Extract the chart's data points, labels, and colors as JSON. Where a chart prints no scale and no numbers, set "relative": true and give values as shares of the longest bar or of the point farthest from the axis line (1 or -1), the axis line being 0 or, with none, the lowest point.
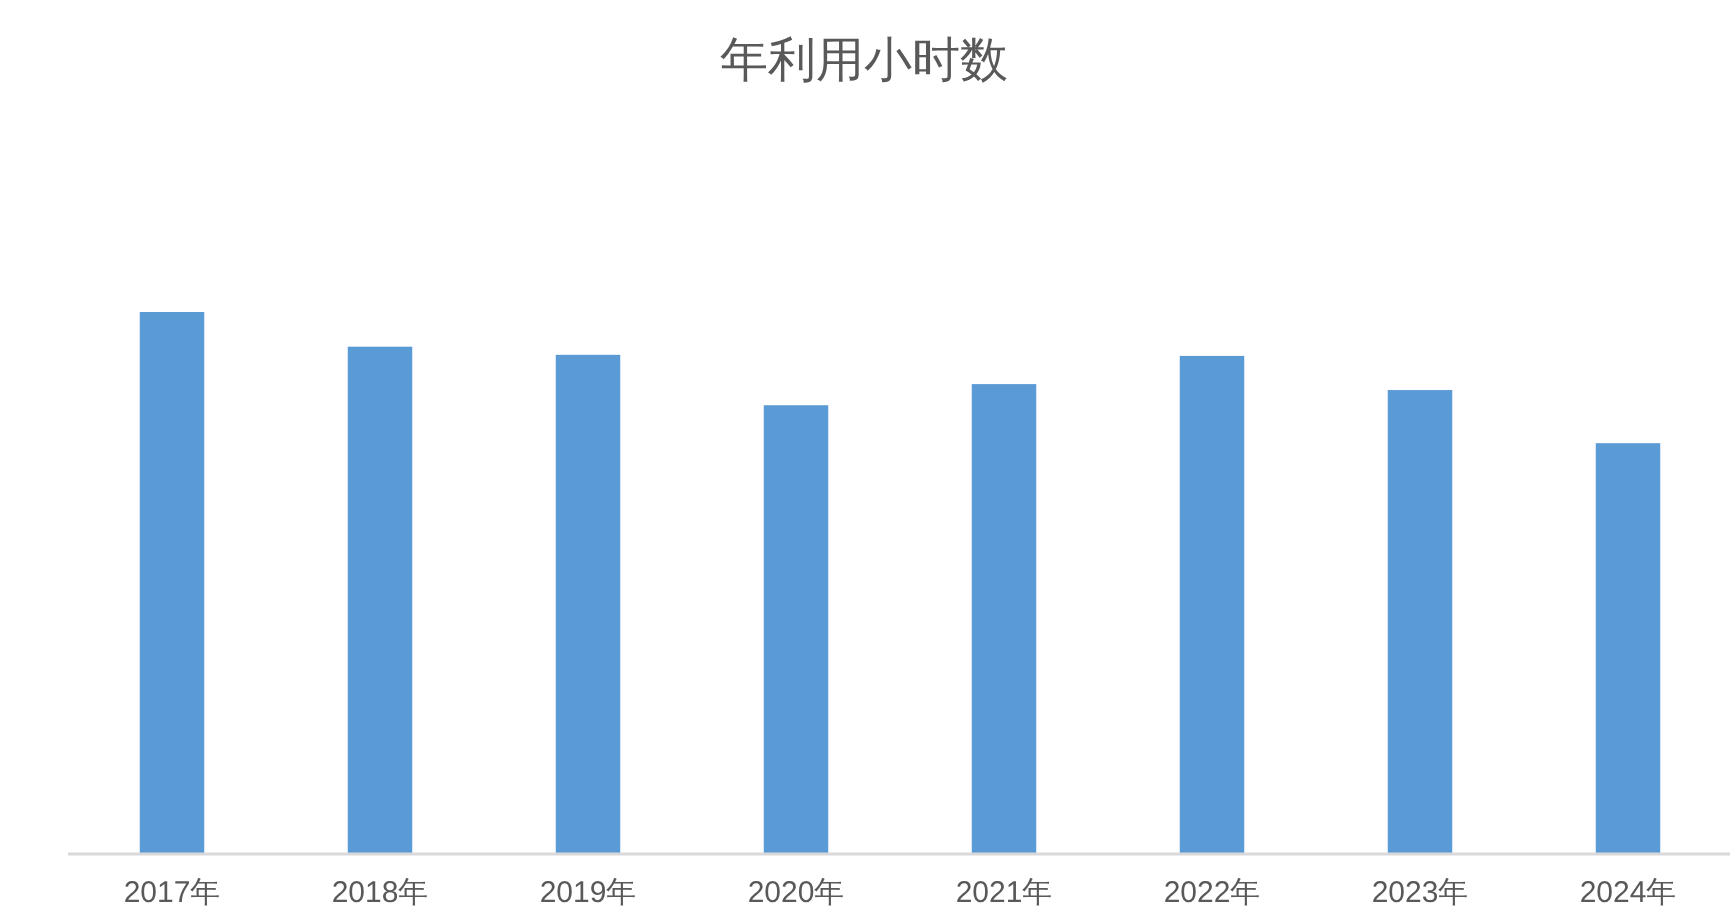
{
  "chart_data": {
    "type": "bar",
    "title": "年利用小时数",
    "categories": [
      "2017年",
      "2018年",
      "2019年",
      "2020年",
      "2021年",
      "2022年",
      "2023年",
      "2024年"
    ],
    "values": [
      1,
      0.936,
      0.921,
      0.828,
      0.867,
      0.919,
      0.856,
      0.758
    ],
    "color": "#5b9bd5",
    "relative": true
  }
}
